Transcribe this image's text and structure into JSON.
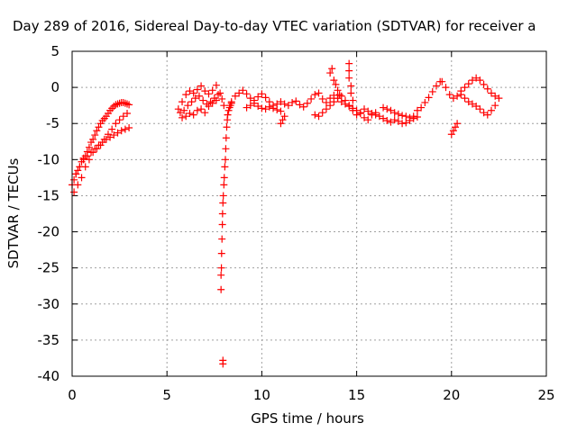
{
  "chart_data": {
    "type": "scatter",
    "title": "Day 289 of 2016, Sidereal Day-to-day VTEC variation (SDTVAR) for receiver a",
    "xlabel": "GPS time / hours",
    "ylabel": "SDTVAR / TECUs",
    "xlim": [
      0,
      25
    ],
    "ylim": [
      -40,
      5
    ],
    "xticks": [
      0,
      5,
      10,
      15,
      20,
      25
    ],
    "yticks": [
      5,
      0,
      -5,
      -10,
      -15,
      -20,
      -25,
      -30,
      -35,
      -40
    ],
    "grid": true,
    "marker": "plus",
    "colors": {
      "series": "#ff0000",
      "grid": "#a0a0a0",
      "axis": "#000000"
    },
    "series": [
      {
        "x": [
          0.0,
          0.1,
          0.2,
          0.3,
          0.4,
          0.5,
          0.6,
          0.7,
          0.8,
          0.9,
          1.0,
          1.1,
          1.2,
          1.3,
          1.4,
          1.5,
          1.6,
          1.7,
          1.8,
          1.9,
          2.0,
          2.1,
          2.2,
          2.3,
          2.4,
          2.5,
          2.6,
          2.7,
          2.8,
          2.9,
          3.0,
          0.1,
          0.3,
          0.5,
          0.7,
          0.9,
          1.1,
          1.3,
          1.5,
          1.7,
          1.9,
          2.1,
          2.3,
          2.5,
          2.7,
          2.9,
          0.2,
          0.4,
          0.6,
          0.8,
          1.0,
          1.2,
          1.4,
          1.6,
          1.8,
          2.0,
          2.2,
          2.4,
          2.6,
          2.8,
          3.0,
          5.6,
          5.8,
          6.0,
          6.2,
          6.4,
          6.6,
          6.8,
          7.0,
          7.2,
          7.4,
          7.6,
          7.8,
          8.0,
          5.7,
          5.9,
          6.1,
          6.3,
          6.5,
          6.7,
          6.9,
          7.1,
          7.3,
          7.5,
          7.7,
          7.9,
          5.8,
          6.0,
          6.2,
          6.4,
          6.6,
          6.8,
          7.0,
          7.2,
          7.4,
          7.6,
          7.85,
          7.85,
          7.87,
          7.88,
          7.9,
          7.92,
          7.93,
          7.95,
          7.97,
          8.0,
          8.02,
          8.05,
          8.08,
          8.1,
          8.12,
          8.15,
          8.18,
          8.2,
          8.25,
          8.3,
          8.35,
          8.4,
          7.95,
          7.95,
          8.4,
          8.6,
          8.8,
          9.0,
          9.2,
          9.4,
          9.6,
          9.8,
          10.0,
          10.2,
          10.4,
          10.6,
          10.8,
          11.0,
          11.2,
          11.4,
          11.6,
          11.8,
          12.0,
          12.2,
          12.4,
          12.6,
          12.8,
          13.0,
          13.2,
          13.4,
          13.6,
          13.8,
          14.0,
          14.2,
          14.4,
          14.6,
          14.8,
          15.0,
          15.2,
          15.4,
          15.6,
          15.8,
          16.0,
          9.2,
          9.4,
          9.6,
          9.8,
          10.0,
          10.2,
          10.4,
          10.6,
          10.8,
          11.0,
          11.0,
          11.1,
          11.2,
          12.8,
          13.0,
          13.2,
          13.4,
          13.6,
          13.8,
          14.0,
          14.2,
          14.4,
          14.6,
          14.8,
          15.0,
          13.6,
          13.7,
          13.8,
          13.9,
          14.0,
          14.1,
          14.6,
          14.6,
          14.6,
          14.7,
          14.7,
          14.8,
          15.2,
          15.4,
          15.6,
          15.8,
          16.0,
          16.2,
          16.4,
          16.6,
          16.8,
          17.0,
          17.2,
          17.4,
          17.6,
          17.8,
          18.0,
          18.2,
          18.4,
          18.6,
          18.8,
          19.0,
          19.2,
          19.4,
          16.4,
          16.6,
          16.8,
          17.0,
          17.2,
          17.4,
          17.6,
          17.8,
          18.0,
          18.2,
          19.5,
          19.7,
          19.9,
          20.1,
          20.3,
          20.5,
          20.7,
          20.9,
          21.1,
          21.3,
          21.5,
          21.7,
          21.9,
          22.1,
          22.3,
          22.5,
          20.0,
          20.1,
          20.2,
          20.3,
          20.5,
          20.7,
          20.9,
          21.1,
          21.3,
          21.5,
          21.7,
          21.9,
          22.1,
          22.3
        ],
        "y": [
          -13.5,
          -12.8,
          -12.0,
          -11.5,
          -11.0,
          -10.3,
          -9.8,
          -9.5,
          -8.9,
          -8.3,
          -7.6,
          -7.2,
          -6.6,
          -6.0,
          -5.5,
          -5.0,
          -4.6,
          -4.3,
          -4.0,
          -3.6,
          -3.2,
          -2.9,
          -2.6,
          -2.4,
          -2.3,
          -2.2,
          -2.1,
          -2.1,
          -2.2,
          -2.3,
          -2.4,
          -14.5,
          -13.5,
          -12.5,
          -11.0,
          -10.0,
          -9.0,
          -8.5,
          -8.0,
          -7.2,
          -6.5,
          -5.8,
          -5.0,
          -4.5,
          -4.0,
          -3.6,
          -12.0,
          -11.0,
          -10.0,
          -9.5,
          -9.0,
          -8.5,
          -8.0,
          -7.6,
          -7.2,
          -6.9,
          -6.6,
          -6.3,
          -6.0,
          -5.8,
          -5.6,
          -3.0,
          -2.0,
          -1.0,
          -0.5,
          -0.8,
          -0.3,
          0.2,
          -0.5,
          -0.9,
          -0.4,
          0.3,
          -0.8,
          -2.5,
          -3.5,
          -3.2,
          -2.5,
          -2.0,
          -1.5,
          -1.2,
          -1.8,
          -2.3,
          -2.0,
          -1.5,
          -1.0,
          -1.6,
          -4.2,
          -4.0,
          -3.6,
          -3.8,
          -3.2,
          -3.0,
          -3.5,
          -2.6,
          -2.2,
          -1.8,
          -28.0,
          -26.0,
          -25.0,
          -23.0,
          -21.0,
          -19.0,
          -17.5,
          -16.0,
          -15.0,
          -13.5,
          -12.5,
          -11.0,
          -10.0,
          -8.5,
          -7.0,
          -5.5,
          -4.5,
          -3.8,
          -3.2,
          -2.8,
          -2.5,
          -2.2,
          -37.8,
          -38.3,
          -2.0,
          -1.2,
          -0.8,
          -0.4,
          -0.9,
          -1.5,
          -1.8,
          -1.3,
          -0.9,
          -1.4,
          -2.0,
          -2.5,
          -2.3,
          -2.0,
          -2.3,
          -2.5,
          -2.1,
          -1.9,
          -2.4,
          -2.7,
          -2.2,
          -1.6,
          -1.0,
          -0.8,
          -1.6,
          -2.1,
          -1.5,
          -1.1,
          -1.5,
          -2.0,
          -2.3,
          -2.6,
          -2.9,
          -3.2,
          -3.5,
          -3.0,
          -3.3,
          -3.6,
          -3.8,
          -2.8,
          -2.5,
          -2.2,
          -2.6,
          -2.9,
          -3.0,
          -2.7,
          -2.9,
          -3.1,
          -3.3,
          -5.0,
          -4.5,
          -4.0,
          -3.8,
          -4.0,
          -3.5,
          -3.0,
          -2.5,
          -2.0,
          -1.5,
          -1.2,
          -1.8,
          -2.5,
          -3.2,
          -3.8,
          2.0,
          2.6,
          1.0,
          0.4,
          -0.4,
          -1.0,
          3.3,
          2.3,
          1.3,
          0.2,
          -0.8,
          -1.8,
          -3.6,
          -4.2,
          -4.5,
          -3.8,
          -3.5,
          -4.0,
          -4.3,
          -4.6,
          -4.8,
          -4.5,
          -4.7,
          -5.0,
          -4.9,
          -4.6,
          -4.0,
          -3.2,
          -2.8,
          -2.1,
          -1.4,
          -0.6,
          0.2,
          0.8,
          -2.8,
          -3.0,
          -3.2,
          -3.5,
          -3.7,
          -3.9,
          -4.0,
          -4.2,
          -4.3,
          -4.1,
          0.8,
          0.0,
          -1.0,
          -1.5,
          -1.2,
          -0.5,
          0.0,
          0.5,
          1.0,
          1.3,
          1.0,
          0.4,
          -0.2,
          -0.8,
          -1.2,
          -1.5,
          -6.5,
          -6.0,
          -5.5,
          -5.0,
          -1.0,
          -1.5,
          -2.0,
          -2.3,
          -2.6,
          -3.0,
          -3.5,
          -3.8,
          -3.2,
          -2.5
        ]
      }
    ]
  }
}
